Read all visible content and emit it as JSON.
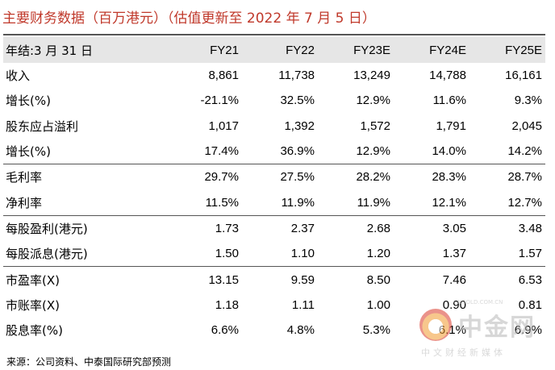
{
  "title": "主要财务数据（百万港元）（估值更新至 2022 年 7 月 5 日）",
  "header": {
    "label": "年结:3 月 31 日",
    "columns": [
      "FY21",
      "FY22",
      "FY23E",
      "FY24E",
      "FY25E"
    ]
  },
  "rows": [
    {
      "label": "收入",
      "values": [
        "8,861",
        "11,738",
        "13,249",
        "14,788",
        "16,161"
      ]
    },
    {
      "label": "增长(%)",
      "values": [
        "-21.1%",
        "32.5%",
        "12.9%",
        "11.6%",
        "9.3%"
      ]
    },
    {
      "label": "股东应占溢利",
      "values": [
        "1,017",
        "1,392",
        "1,572",
        "1,791",
        "2,045"
      ]
    },
    {
      "label": "增长(%)",
      "values": [
        "17.4%",
        "36.9%",
        "12.9%",
        "14.0%",
        "14.2%"
      ]
    },
    {
      "label": "毛利率",
      "values": [
        "29.7%",
        "27.5%",
        "28.2%",
        "28.3%",
        "28.7%"
      ]
    },
    {
      "label": "净利率",
      "values": [
        "11.5%",
        "11.9%",
        "11.9%",
        "12.1%",
        "12.7%"
      ]
    },
    {
      "label": "每股盈利(港元)",
      "values": [
        "1.73",
        "2.37",
        "2.68",
        "3.05",
        "3.48"
      ]
    },
    {
      "label": "每股派息(港元)",
      "values": [
        "1.50",
        "1.10",
        "1.20",
        "1.37",
        "1.57"
      ]
    },
    {
      "label": "市盈率(X)",
      "values": [
        "13.15",
        "9.59",
        "8.50",
        "7.46",
        "6.53"
      ]
    },
    {
      "label": "市账率(X)",
      "values": [
        "1.18",
        "1.11",
        "1.00",
        "0.90",
        "0.81"
      ]
    },
    {
      "label": "股息率(%)",
      "values": [
        "6.6%",
        "4.8%",
        "5.3%",
        "6.1%",
        "6.9%"
      ]
    }
  ],
  "source": "来源：公司资料、中泰国际研究部预测",
  "watermark": {
    "name": "中金网",
    "url": "CNGOLD.COM.CN",
    "tagline": "中文财经新媒体",
    "colors": {
      "outer": "#d93a2b",
      "inner": "#f29b2f"
    }
  }
}
